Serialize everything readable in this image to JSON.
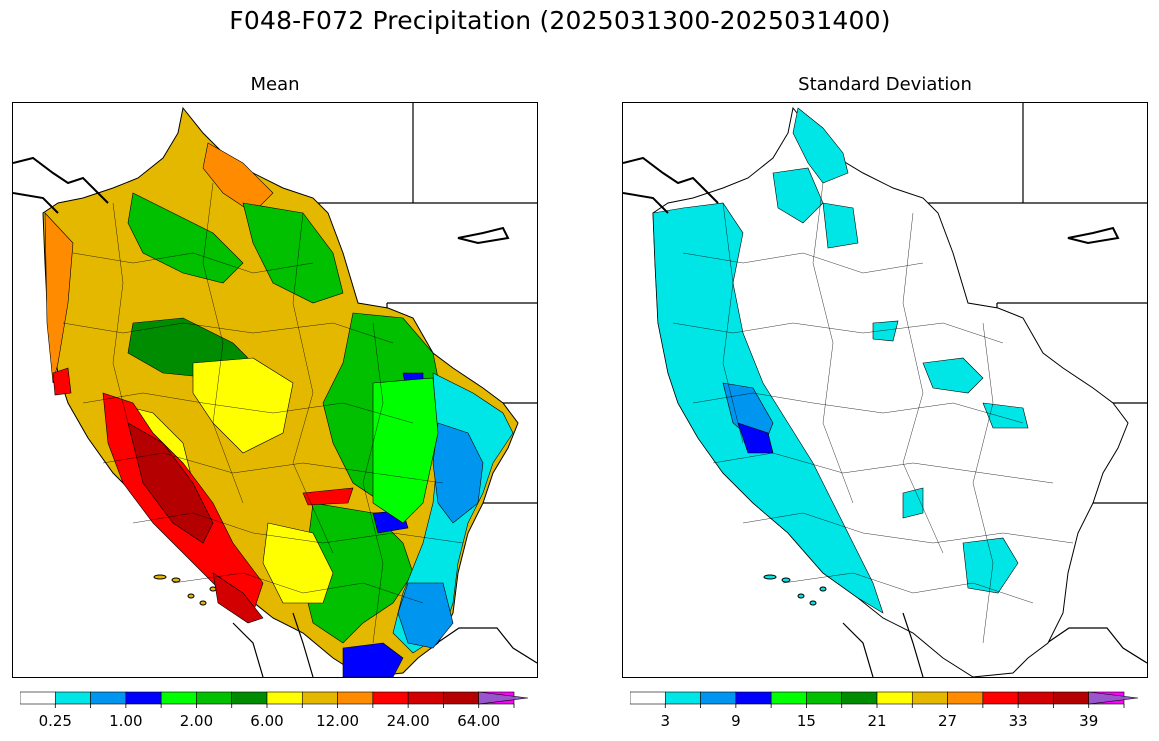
{
  "title": "F048-F072 Precipitation (2025031300-2025031400)",
  "panels": {
    "mean": {
      "title": "Mean",
      "colorbar": {
        "colors": [
          "#ffffff",
          "#00e5e5",
          "#0096f0",
          "#0000ff",
          "#00ff00",
          "#00c000",
          "#008c00",
          "#ffff00",
          "#e5b800",
          "#ff8c00",
          "#ff0000",
          "#d20000",
          "#b40000",
          "#ff00ff",
          "#9955cc"
        ],
        "tick_labels": [
          "0.25",
          "1.00",
          "2.00",
          "6.00",
          "12.00",
          "24.00",
          "64.00"
        ]
      }
    },
    "sd": {
      "title": "Standard Deviation",
      "colorbar": {
        "colors": [
          "#ffffff",
          "#00e5e5",
          "#0096f0",
          "#0000ff",
          "#00ff00",
          "#00c000",
          "#008c00",
          "#ffff00",
          "#e5b800",
          "#ff8c00",
          "#ff0000",
          "#d20000",
          "#b40000",
          "#ff00ff",
          "#9955cc"
        ],
        "tick_labels": [
          "3",
          "9",
          "15",
          "21",
          "27",
          "33",
          "39"
        ]
      }
    }
  }
}
